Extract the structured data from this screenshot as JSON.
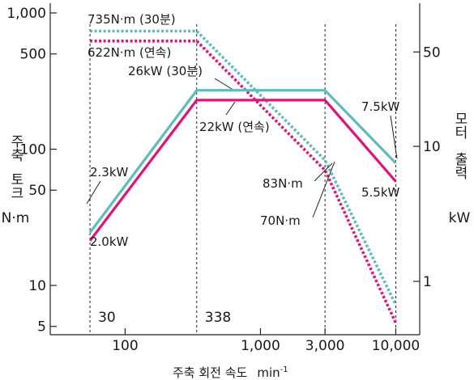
{
  "chart_data": {
    "type": "line",
    "xlabel": "주축 회전 속도",
    "xlabel_unit": "min",
    "xlabel_unit_exp": "-1",
    "ylabel_left": [
      "주축",
      "토크",
      "N·m"
    ],
    "ylabel_right": [
      "모터",
      "출력",
      "kW"
    ],
    "x_scale": "log",
    "y_scale": "log",
    "xlim": [
      52,
      10500
    ],
    "ylim_torque": [
      4,
      1000
    ],
    "ylim_power": [
      0.4,
      100
    ],
    "x_ticks": [
      {
        "value": 100,
        "label": "100"
      },
      {
        "value": 1000,
        "label": "1,000"
      },
      {
        "value": 3000,
        "label": "3,000"
      },
      {
        "value": 10000,
        "label": "10,000"
      }
    ],
    "x_inner_labels": [
      {
        "value": 30,
        "label": "30"
      },
      {
        "value": 338,
        "label": "338"
      }
    ],
    "y_ticks_left": [
      {
        "value": 5,
        "label": "5"
      },
      {
        "value": 10,
        "label": "10"
      },
      {
        "value": 50,
        "label": "50"
      },
      {
        "value": 100,
        "label": "100"
      },
      {
        "value": 500,
        "label": "500"
      },
      {
        "value": 1000,
        "label": "1,000"
      }
    ],
    "y_ticks_right": [
      {
        "value": 1,
        "label": "1"
      },
      {
        "value": 10,
        "label": "10"
      },
      {
        "value": 50,
        "label": "50"
      }
    ],
    "series": [
      {
        "key": "torque_30min",
        "axis": "torque",
        "style": "dotted",
        "color": "#5bbdbd",
        "points": [
          [
            55,
            735
          ],
          [
            338,
            735
          ],
          [
            3000,
            83
          ],
          [
            10000,
            7.2
          ]
        ]
      },
      {
        "key": "torque_cont",
        "axis": "torque",
        "style": "dotted",
        "color": "#e2127a",
        "points": [
          [
            55,
            622
          ],
          [
            338,
            622
          ],
          [
            3000,
            70
          ],
          [
            10000,
            5.3
          ]
        ]
      },
      {
        "key": "power_30min",
        "axis": "power",
        "style": "solid",
        "color": "#5bbdbd",
        "points": [
          [
            55,
            2.3
          ],
          [
            338,
            26
          ],
          [
            3000,
            26
          ],
          [
            10000,
            7.5
          ]
        ]
      },
      {
        "key": "power_cont",
        "axis": "power",
        "style": "solid",
        "color": "#e2127a",
        "points": [
          [
            55,
            2.0
          ],
          [
            338,
            22
          ],
          [
            3000,
            22
          ],
          [
            10000,
            5.5
          ]
        ]
      }
    ],
    "vlines": [
      55,
      338,
      3000,
      10000
    ],
    "annotations": [
      {
        "key": "a1",
        "text": "735N·m (30분)"
      },
      {
        "key": "a2",
        "text": "622N·m (연속)"
      },
      {
        "key": "a3",
        "text": "26kW (30분)"
      },
      {
        "key": "a4",
        "text": "22kW (연속)"
      },
      {
        "key": "a5",
        "text": "7.5kW"
      },
      {
        "key": "a6",
        "text": "2.3kW"
      },
      {
        "key": "a7",
        "text": "2.0kW"
      },
      {
        "key": "a8",
        "text": "83N·m"
      },
      {
        "key": "a9",
        "text": "70N·m"
      },
      {
        "key": "a10",
        "text": "5.5kW"
      }
    ]
  }
}
